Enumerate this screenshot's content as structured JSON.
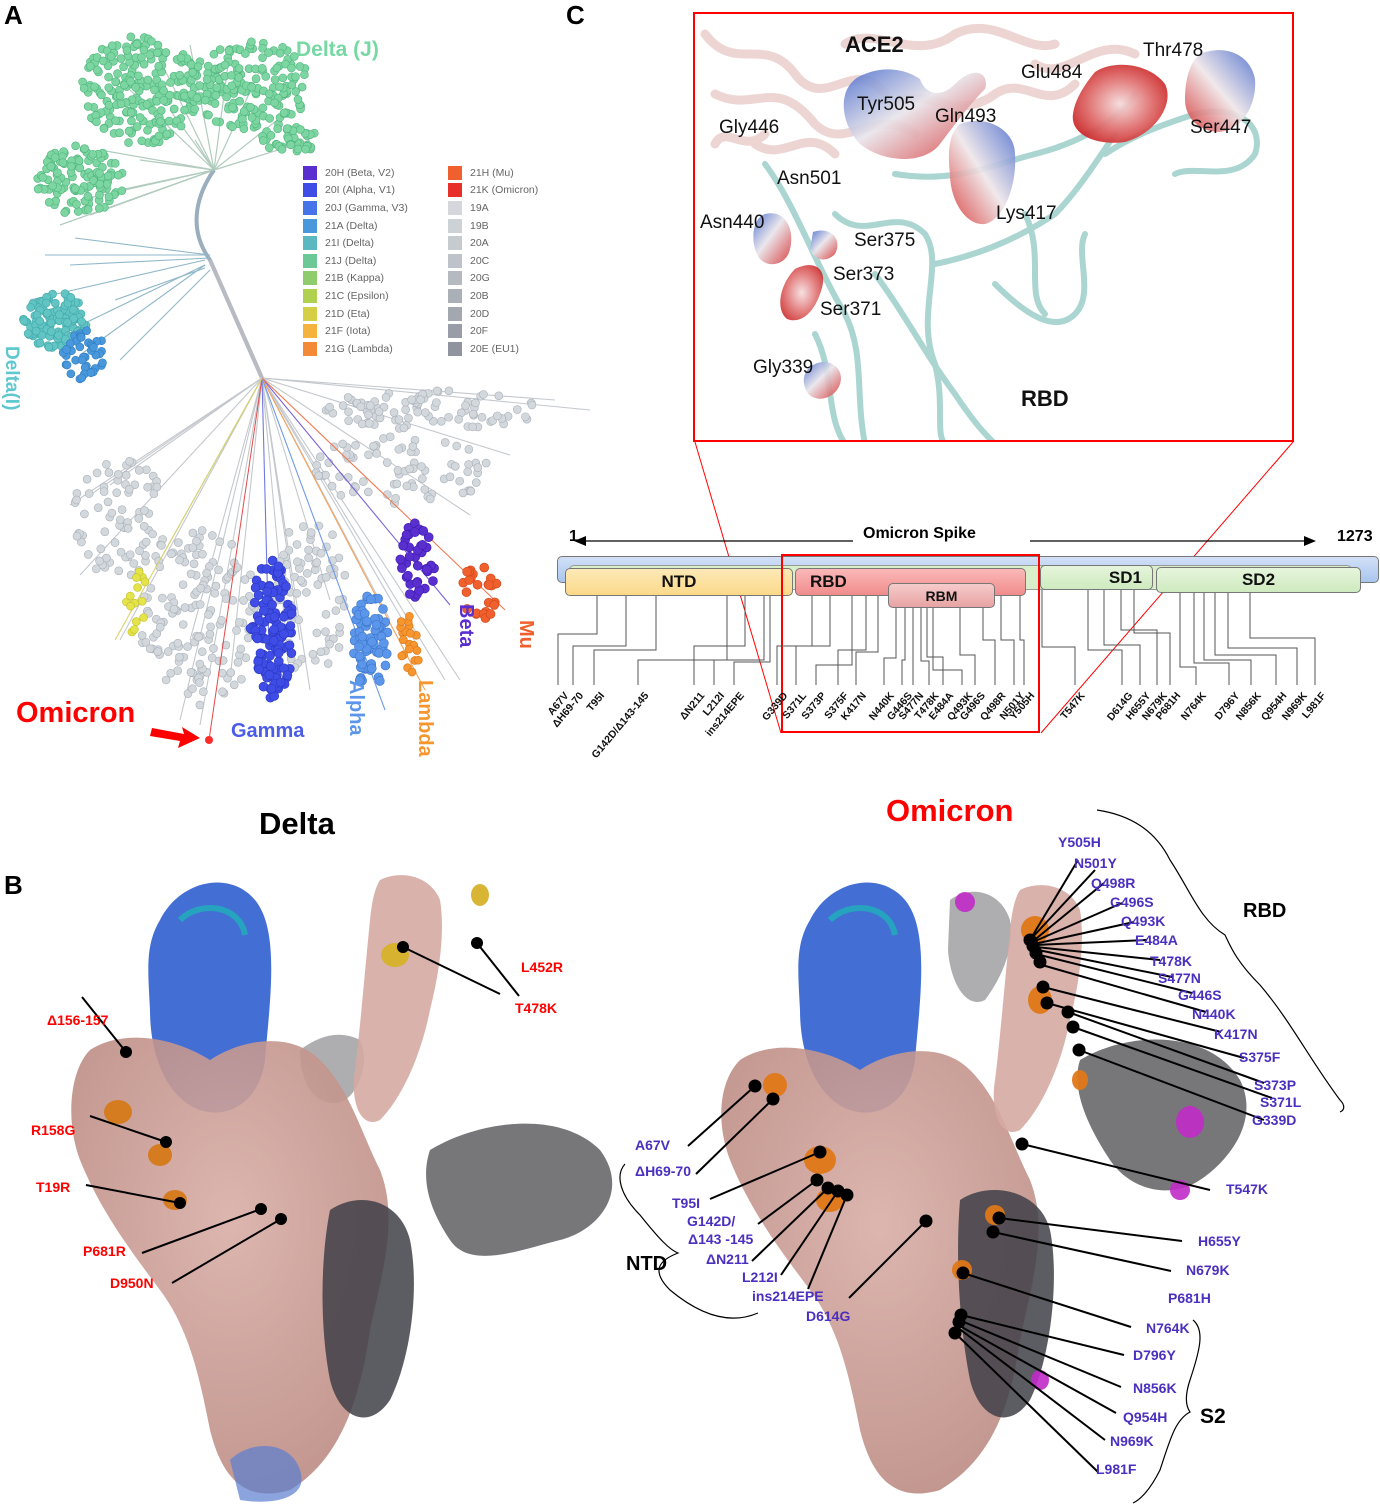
{
  "panels": {
    "A": {
      "letter": "A",
      "clade_labels": {
        "delta_j": "Delta (J)",
        "delta_i": "Delta(I)",
        "omicron": "Omicron",
        "gamma": "Gamma",
        "alpha": "Alpha",
        "lambda": "Lambda",
        "beta": "Beta",
        "mu": "Mu"
      },
      "legend": {
        "left": [
          {
            "label": "20H (Beta, V2)",
            "color": "#5a2fd0"
          },
          {
            "label": "20I (Alpha, V1)",
            "color": "#3f4de6"
          },
          {
            "label": "20J (Gamma, V3)",
            "color": "#4574e8"
          },
          {
            "label": "21A (Delta)",
            "color": "#4a98dc"
          },
          {
            "label": "21I (Delta)",
            "color": "#5bb8c0"
          },
          {
            "label": "21J (Delta)",
            "color": "#6dc898"
          },
          {
            "label": "21B (Kappa)",
            "color": "#8fcc6e"
          },
          {
            "label": "21C (Epsilon)",
            "color": "#b0d050"
          },
          {
            "label": "21D (Eta)",
            "color": "#d4cf45"
          },
          {
            "label": "21F (Iota)",
            "color": "#f5b23d"
          },
          {
            "label": "21G (Lambda)",
            "color": "#f58a36"
          }
        ],
        "right": [
          {
            "label": "21H (Mu)",
            "color": "#f0602e"
          },
          {
            "label": "21K (Omicron)",
            "color": "#e8302a"
          },
          {
            "label": "19A",
            "color": "#d4d8dc"
          },
          {
            "label": "19B",
            "color": "#cdd2d6"
          },
          {
            "label": "20A",
            "color": "#c6cbd0"
          },
          {
            "label": "20C",
            "color": "#bec3c9"
          },
          {
            "label": "20G",
            "color": "#b5bac1"
          },
          {
            "label": "20B",
            "color": "#abb0b8"
          },
          {
            "label": "20D",
            "color": "#a2a7b0"
          },
          {
            "label": "20F",
            "color": "#989da7"
          },
          {
            "label": "20E (EU1)",
            "color": "#8f949f"
          }
        ]
      },
      "colors": {
        "delta_j": "#6dd49a",
        "delta_i": "#55c4c8",
        "omicron": "#ff0000",
        "gamma": "#4a5ce8",
        "alpha": "#5b96ea",
        "lambda": "#f7962f",
        "beta": "#5a2fd0",
        "mu": "#f0602e"
      }
    },
    "B": {
      "letter": "B",
      "delta": {
        "title": "Delta",
        "mutations": [
          "L452R",
          "T478K",
          "Δ156-157",
          "R158G",
          "T19R",
          "P681R",
          "D950N"
        ]
      },
      "omicron": {
        "title": "Omicron",
        "rbd_mutations": [
          "Y505H",
          "N501Y",
          "Q498R",
          "G496S",
          "Q493K",
          "E484A",
          "T478K",
          "S477N",
          "G446S",
          "N440K",
          "K417N",
          "S375F",
          "S373P",
          "S371L",
          "G339D"
        ],
        "ntd_mutations": [
          "A67V",
          "ΔH69-70",
          "T95I",
          "G142D/",
          "Δ143 -145",
          "ΔN211",
          "L212I",
          "ins214EPE"
        ],
        "other_mutations": [
          "D614G",
          "T547K",
          "H655Y",
          "N679K",
          "P681H"
        ],
        "s2_mutations": [
          "N764K",
          "D796Y",
          "N856K",
          "Q954H",
          "N969K",
          "L981F"
        ],
        "brackets": {
          "rbd": "RBD",
          "ntd": "NTD",
          "s2": "S2"
        }
      }
    },
    "C": {
      "letter": "C",
      "structure": {
        "ace2_label": "ACE2",
        "rbd_label": "RBD",
        "residues": [
          "Thr478",
          "Glu484",
          "Tyr505",
          "Gln493",
          "Gly446",
          "Ser447",
          "Asn501",
          "Lys417",
          "Asn440",
          "Ser375",
          "Ser373",
          "Ser371",
          "Gly339"
        ]
      },
      "spike_map": {
        "title": "Omicron Spike",
        "start": "1",
        "end": "1273",
        "domains": {
          "ntd": "NTD",
          "rbd": "RBD",
          "rbm": "RBM",
          "sd1": "SD1",
          "sd2": "SD2"
        },
        "mutations": [
          "A67V",
          "ΔH69-70",
          "T95I",
          "G142D/Δ143-145",
          "ΔN211",
          "L212I",
          "ins214EPE",
          "G339D",
          "S371L",
          "S373P",
          "S375F",
          "K417N",
          "N440K",
          "G446S",
          "S477N",
          "T478K",
          "E484A",
          "Q493K",
          "G496S",
          "Q498R",
          "N501Y",
          "Y505H",
          "T547K",
          "D614G",
          "H655Y",
          "N679K",
          "P681H",
          "N764K",
          "D796Y",
          "N856K",
          "Q954H",
          "N969K",
          "L981F"
        ]
      }
    }
  }
}
